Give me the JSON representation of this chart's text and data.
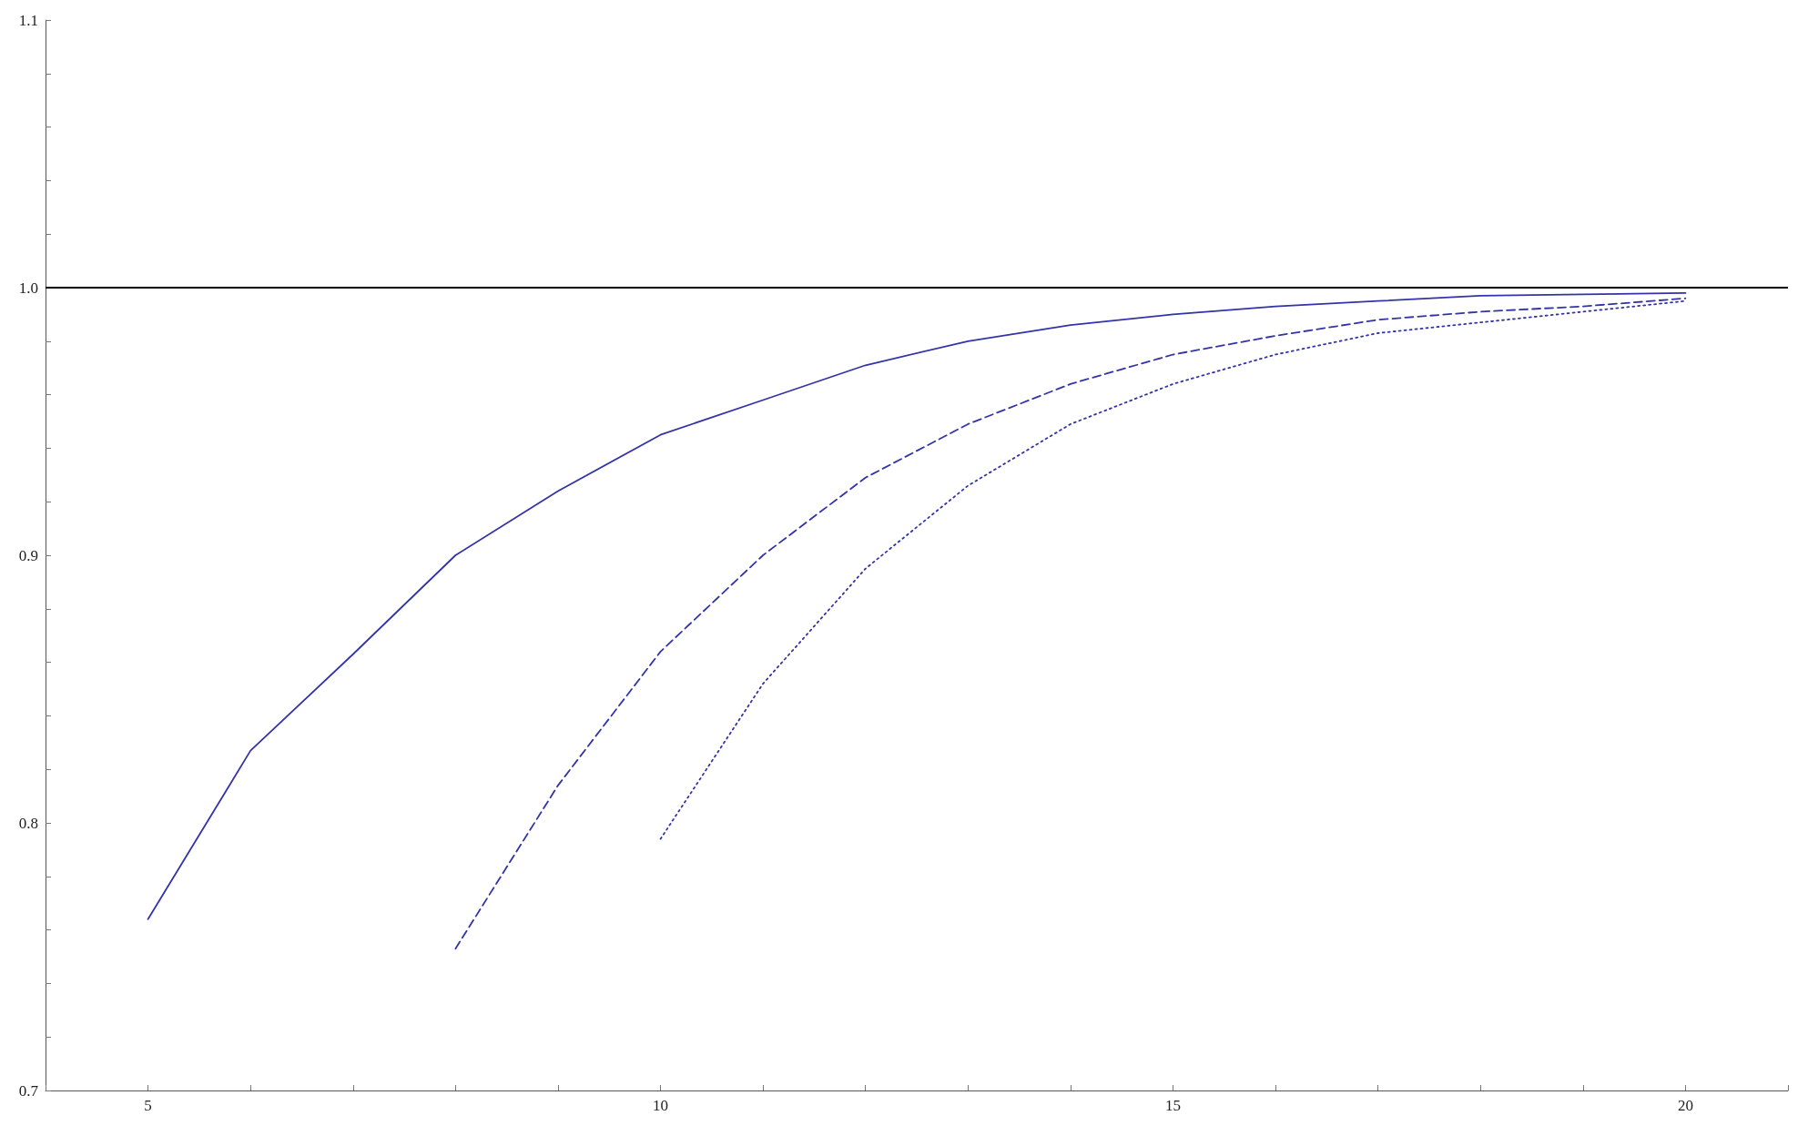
{
  "chart_data": {
    "type": "line",
    "series": [
      {
        "color": "#3333aa",
        "line_style": "solid",
        "x": [
          5,
          6,
          7,
          8,
          9,
          10,
          11,
          12,
          13,
          14,
          15,
          16,
          17,
          18,
          19,
          20
        ],
        "values": [
          0.764,
          0.827,
          0.863,
          0.9,
          0.924,
          0.945,
          0.958,
          0.971,
          0.98,
          0.986,
          0.99,
          0.993,
          0.995,
          0.997,
          0.9975,
          0.998
        ]
      },
      {
        "color": "#3333aa",
        "line_style": "dashed",
        "x": [
          8,
          9,
          10,
          11,
          12,
          13,
          14,
          15,
          16,
          17,
          18,
          19,
          20
        ],
        "values": [
          0.753,
          0.814,
          0.864,
          0.9,
          0.929,
          0.949,
          0.964,
          0.975,
          0.982,
          0.988,
          0.991,
          0.993,
          0.996
        ]
      },
      {
        "color": "#3333aa",
        "line_style": "dotted",
        "x": [
          10,
          11,
          12,
          13,
          14,
          15,
          16,
          17,
          18,
          19,
          20
        ],
        "values": [
          0.794,
          0.852,
          0.895,
          0.926,
          0.949,
          0.964,
          0.975,
          0.983,
          0.987,
          0.991,
          0.995
        ]
      }
    ],
    "xlim": [
      4,
      21
    ],
    "xticks": [
      {
        "value": 4,
        "label": null
      },
      5,
      {
        "value": 6,
        "label": null
      },
      {
        "value": 7,
        "label": null
      },
      {
        "value": 8,
        "label": null
      },
      {
        "value": 9,
        "label": null
      },
      10,
      {
        "value": 11,
        "label": null
      },
      {
        "value": 12,
        "label": null
      },
      {
        "value": 13,
        "label": null
      },
      {
        "value": 14,
        "label": null
      },
      15,
      {
        "value": 16,
        "label": null
      },
      {
        "value": 17,
        "label": null
      },
      {
        "value": 18,
        "label": null
      },
      {
        "value": 19,
        "label": null
      },
      20,
      {
        "value": 21,
        "label": null
      }
    ],
    "ylim": [
      0.7,
      1.1
    ],
    "yticks": [
      0.7,
      {
        "value": 0.72,
        "label": null
      },
      {
        "value": 0.74,
        "label": null
      },
      {
        "value": 0.76,
        "label": null
      },
      {
        "value": 0.78,
        "label": null
      },
      0.8,
      {
        "value": 0.82,
        "label": null
      },
      {
        "value": 0.84,
        "label": null
      },
      {
        "value": 0.86,
        "label": null
      },
      {
        "value": 0.88,
        "label": null
      },
      0.9,
      {
        "value": 0.92,
        "label": null
      },
      {
        "value": 0.94,
        "label": null
      },
      {
        "value": 0.96,
        "label": null
      },
      {
        "value": 0.98,
        "label": null
      },
      {
        "value": 1,
        "label": "1.0"
      },
      {
        "value": 1.02,
        "label": null
      },
      {
        "value": 1.04,
        "label": null
      },
      {
        "value": 1.06,
        "label": null
      },
      {
        "value": 1.08,
        "label": null
      },
      1.1
    ],
    "ref_lines": [
      {
        "axis": "y",
        "value": 1,
        "color": "#000000",
        "line_style": "solid"
      }
    ],
    "grid": false,
    "marker": "none"
  }
}
